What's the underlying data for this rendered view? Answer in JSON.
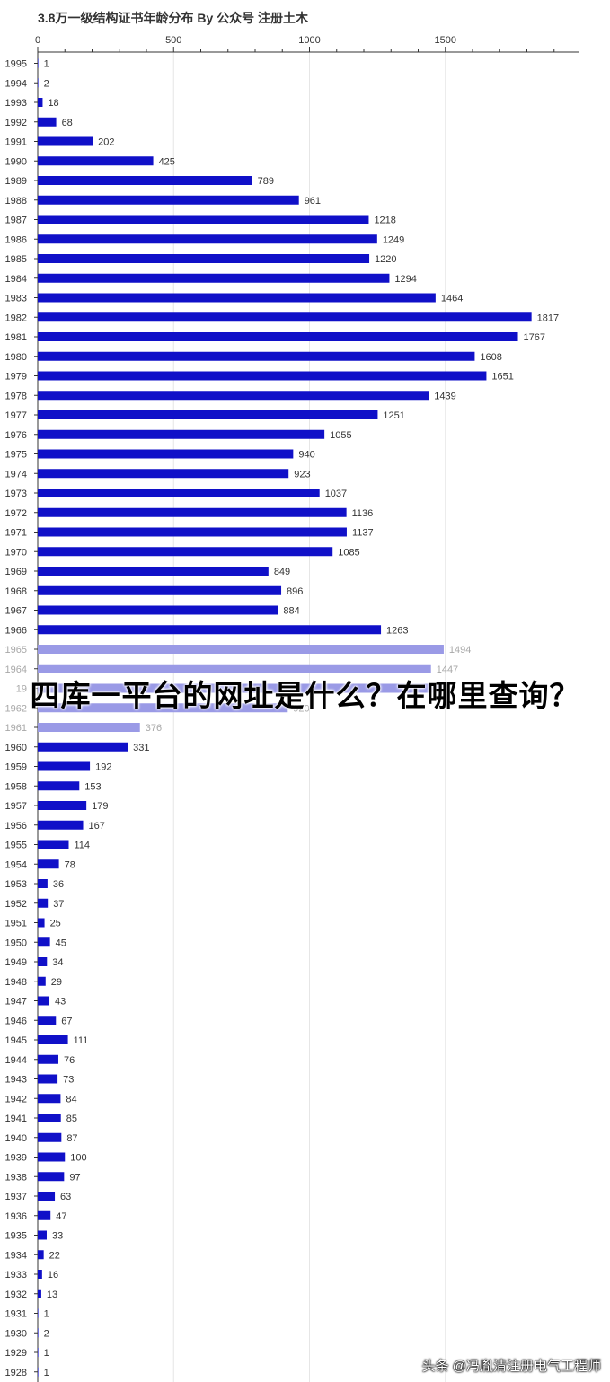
{
  "colors": {
    "bar": "#1010c8",
    "bar_faded": "#9a9ae6",
    "label": "#333333",
    "label_faded": "#a8a8a8",
    "grid": "#e6e6e6",
    "axis": "#333333"
  },
  "overlay_text": "四库一平台的网址是什么？在哪里查询？",
  "watermark": "头条 @冯胤清注册电气工程师",
  "chart_data": {
    "type": "bar",
    "orientation": "horizontal",
    "title": "3.8万一级结构证书年龄分布 By 公众号 注册土木",
    "xlabel": "",
    "ylabel": "",
    "xlim": [
      0,
      2000
    ],
    "xticks": [
      0,
      500,
      1000,
      1500
    ],
    "grid": true,
    "categories": [
      "1995",
      "1994",
      "1993",
      "1992",
      "1991",
      "1990",
      "1989",
      "1988",
      "1987",
      "1986",
      "1985",
      "1984",
      "1983",
      "1982",
      "1981",
      "1980",
      "1979",
      "1978",
      "1977",
      "1976",
      "1975",
      "1974",
      "1973",
      "1972",
      "1971",
      "1970",
      "1969",
      "1968",
      "1967",
      "1966",
      "1965",
      "1964",
      "1963",
      "1962",
      "1961",
      "1960",
      "1959",
      "1958",
      "1957",
      "1956",
      "1955",
      "1954",
      "1953",
      "1952",
      "1951",
      "1950",
      "1949",
      "1948",
      "1947",
      "1946",
      "1945",
      "1944",
      "1943",
      "1942",
      "1941",
      "1940",
      "1939",
      "1938",
      "1937",
      "1936",
      "1935",
      "1934",
      "1933",
      "1932",
      "1931",
      "1930",
      "1929",
      "1928"
    ],
    "values": [
      1,
      2,
      18,
      68,
      202,
      425,
      789,
      961,
      1218,
      1249,
      1220,
      1294,
      1464,
      1817,
      1767,
      1608,
      1651,
      1439,
      1251,
      1055,
      940,
      923,
      1037,
      1136,
      1137,
      1085,
      849,
      896,
      884,
      1263,
      1494,
      1447,
      1500,
      920,
      376,
      331,
      192,
      153,
      179,
      167,
      114,
      78,
      36,
      37,
      25,
      45,
      34,
      29,
      43,
      67,
      111,
      76,
      73,
      84,
      85,
      87,
      100,
      97,
      63,
      47,
      33,
      22,
      16,
      13,
      1,
      2,
      1,
      1
    ],
    "value_labels": [
      "1",
      "2",
      "18",
      "68",
      "202",
      "425",
      "789",
      "961",
      "1218",
      "1249",
      "1220",
      "1294",
      "1464",
      "1817",
      "1767",
      "1608",
      "1651",
      "1439",
      "1251",
      "1055",
      "940",
      "923",
      "1037",
      "1136",
      "1137",
      "1085",
      "849",
      "896",
      "884",
      "1263",
      "1494",
      "1447",
      "",
      "920",
      "376",
      "331",
      "192",
      "153",
      "179",
      "167",
      "114",
      "78",
      "36",
      "37",
      "25",
      "45",
      "34",
      "29",
      "43",
      "67",
      "111",
      "76",
      "73",
      "84",
      "85",
      "87",
      "100",
      "97",
      "63",
      "47",
      "33",
      "22",
      "16",
      "13",
      "1",
      "2",
      "1",
      "1"
    ],
    "category_labels": [
      "1995",
      "1994",
      "1993",
      "1992",
      "1991",
      "1990",
      "1989",
      "1988",
      "1987",
      "1986",
      "1985",
      "1984",
      "1983",
      "1982",
      "1981",
      "1980",
      "1979",
      "1978",
      "1977",
      "1976",
      "1975",
      "1974",
      "1973",
      "1972",
      "1971",
      "1970",
      "1969",
      "1968",
      "1967",
      "1966",
      "1965",
      "1964",
      "19",
      "1962",
      "1961",
      "1960",
      "1959",
      "1958",
      "1957",
      "1956",
      "1955",
      "1954",
      "1953",
      "1952",
      "1951",
      "1950",
      "1949",
      "1948",
      "1947",
      "1946",
      "1945",
      "1944",
      "1943",
      "1942",
      "1941",
      "1940",
      "1939",
      "1938",
      "1937",
      "1936",
      "1935",
      "1934",
      "1933",
      "1932",
      "1931",
      "1930",
      "1929",
      "1928"
    ],
    "faded_categories": [
      "1965",
      "1964",
      "1963",
      "1962",
      "1961"
    ]
  }
}
